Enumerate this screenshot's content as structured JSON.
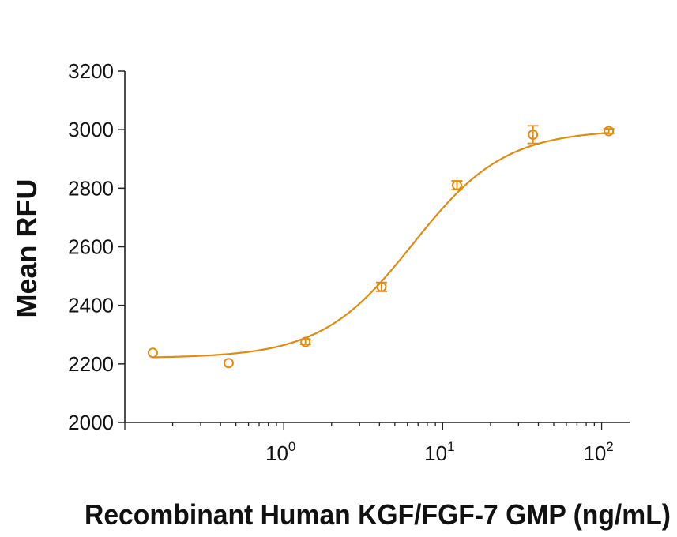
{
  "chart_data": {
    "type": "scatter",
    "title": "",
    "xlabel": "Recombinant Human KGF/FGF-7 GMP (ng/mL)",
    "ylabel": "Mean RFU",
    "xscale": "log",
    "xlim": [
      0.1,
      150
    ],
    "ylim": [
      2000,
      3200
    ],
    "yticks": [
      2000,
      2200,
      2400,
      2600,
      2800,
      3000,
      3200
    ],
    "xticks": [
      {
        "value": 1,
        "base": "10",
        "exp": "0"
      },
      {
        "value": 10,
        "base": "10",
        "exp": "1"
      },
      {
        "value": 100,
        "base": "10",
        "exp": "2"
      }
    ],
    "grid": false,
    "legend": "none",
    "color": "#E08A12",
    "series": [
      {
        "x": [
          0.15,
          0.45,
          1.37,
          4.12,
          12.3,
          37.0,
          111.0
        ],
        "y": [
          2238,
          2203,
          2275,
          2463,
          2810,
          2983,
          2995
        ],
        "err": [
          0,
          0,
          8,
          15,
          15,
          30,
          8
        ],
        "fit": {
          "model": "4PL",
          "bottom": 2220,
          "top": 3000,
          "ec50": 6.5,
          "hill": 1.5
        }
      }
    ]
  }
}
